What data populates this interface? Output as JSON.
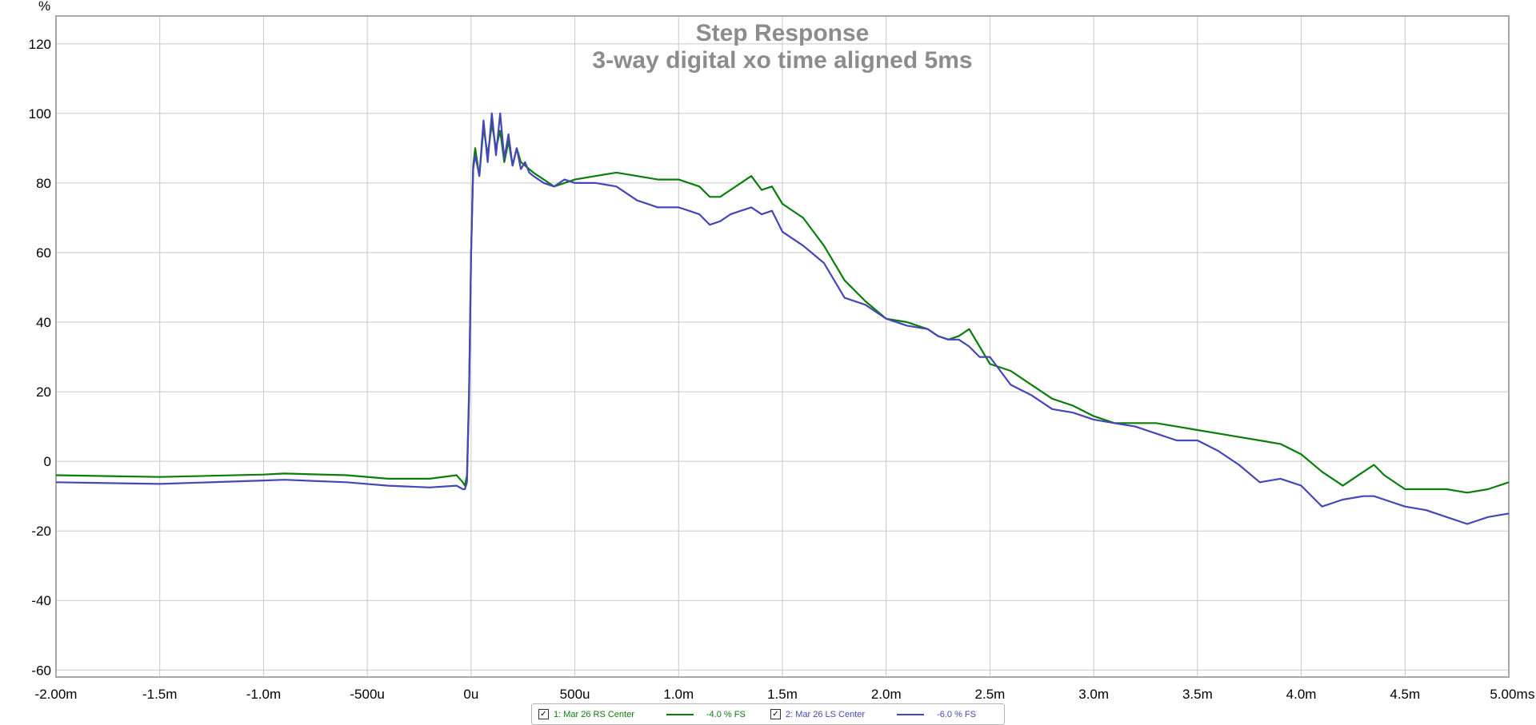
{
  "chart_data": {
    "type": "line",
    "title": "Step Response",
    "subtitle": "3-way digital xo time aligned 5ms",
    "ylabel": "%",
    "xunit": "s",
    "xlim": [
      -0.002,
      0.005
    ],
    "ylim": [
      -62,
      128
    ],
    "grid": true,
    "xticks": [
      {
        "v": -0.002,
        "label": "-2.00m"
      },
      {
        "v": -0.0015,
        "label": "-1.5m"
      },
      {
        "v": -0.001,
        "label": "-1.0m"
      },
      {
        "v": -0.0005,
        "label": "-500u"
      },
      {
        "v": 0,
        "label": "0u"
      },
      {
        "v": 0.0005,
        "label": "500u"
      },
      {
        "v": 0.001,
        "label": "1.0m"
      },
      {
        "v": 0.0015,
        "label": "1.5m"
      },
      {
        "v": 0.002,
        "label": "2.0m"
      },
      {
        "v": 0.0025,
        "label": "2.5m"
      },
      {
        "v": 0.003,
        "label": "3.0m"
      },
      {
        "v": 0.0035,
        "label": "3.5m"
      },
      {
        "v": 0.004,
        "label": "4.0m"
      },
      {
        "v": 0.0045,
        "label": "4.5m"
      },
      {
        "v": 0.005,
        "label": "5.00m"
      }
    ],
    "yticks": [
      120,
      100,
      80,
      60,
      40,
      20,
      0,
      -20,
      -40,
      -60
    ],
    "series": [
      {
        "name": "1: Mar 26 RS Center",
        "offset_label": "-4.0 % FS",
        "color": "#0a7d0a",
        "x": [
          -0.002,
          -0.0015,
          -0.001,
          -0.0009,
          -0.0006,
          -0.0004,
          -0.0002,
          -7e-05,
          -4e-05,
          -3e-05,
          -2e-05,
          -1e-05,
          0,
          1e-05,
          2e-05,
          4e-05,
          6e-05,
          8e-05,
          0.0001,
          0.00012,
          0.00014,
          0.00016,
          0.00018,
          0.0002,
          0.00022,
          0.00024,
          0.00026,
          0.00028,
          0.0003,
          0.00035,
          0.0004,
          0.00045,
          0.0005,
          0.0006,
          0.0007,
          0.0008,
          0.0009,
          0.001,
          0.00105,
          0.0011,
          0.00115,
          0.0012,
          0.00125,
          0.0013,
          0.00135,
          0.0014,
          0.00145,
          0.0015,
          0.0016,
          0.0017,
          0.0018,
          0.0019,
          0.002,
          0.0021,
          0.0022,
          0.00225,
          0.0023,
          0.00235,
          0.0024,
          0.00245,
          0.0025,
          0.0026,
          0.0027,
          0.0028,
          0.0029,
          0.003,
          0.0031,
          0.0032,
          0.0033,
          0.0034,
          0.0035,
          0.0036,
          0.0037,
          0.0038,
          0.0039,
          0.004,
          0.0041,
          0.0042,
          0.0043,
          0.00435,
          0.0044,
          0.0045,
          0.0046,
          0.0047,
          0.0048,
          0.0049,
          0.005
        ],
        "y": [
          -4,
          -4.5,
          -3.8,
          -3.5,
          -4,
          -5,
          -5,
          -4,
          -6,
          -7,
          -4,
          20,
          60,
          85,
          90,
          82,
          96,
          88,
          97,
          90,
          95,
          86,
          92,
          85,
          90,
          86,
          85,
          84,
          83,
          81,
          79,
          80,
          81,
          82,
          83,
          82,
          81,
          81,
          80,
          79,
          76,
          76,
          78,
          80,
          82,
          78,
          79,
          74,
          70,
          62,
          52,
          46,
          41,
          40,
          38,
          36,
          35,
          36,
          38,
          33,
          28,
          26,
          22,
          18,
          16,
          13,
          11,
          11,
          11,
          10,
          9,
          8,
          7,
          6,
          5,
          2,
          -3,
          -7,
          -3,
          -1,
          -4,
          -8,
          -8,
          -8,
          -9,
          -8,
          -6
        ]
      },
      {
        "name": "2: Mar 26 LS Center",
        "offset_label": "-6.0 % FS",
        "color": "#4646b8",
        "x": [
          -0.002,
          -0.0015,
          -0.001,
          -0.0009,
          -0.0006,
          -0.0004,
          -0.0002,
          -7e-05,
          -4e-05,
          -3e-05,
          -2e-05,
          -1e-05,
          0,
          1e-05,
          2e-05,
          4e-05,
          6e-05,
          8e-05,
          0.0001,
          0.00012,
          0.00014,
          0.00016,
          0.00018,
          0.0002,
          0.00022,
          0.00024,
          0.00026,
          0.00028,
          0.0003,
          0.00035,
          0.0004,
          0.00045,
          0.0005,
          0.0006,
          0.0007,
          0.0008,
          0.0009,
          0.001,
          0.00105,
          0.0011,
          0.00115,
          0.0012,
          0.00125,
          0.0013,
          0.00135,
          0.0014,
          0.00145,
          0.0015,
          0.0016,
          0.0017,
          0.0018,
          0.0019,
          0.002,
          0.0021,
          0.0022,
          0.00225,
          0.0023,
          0.00235,
          0.0024,
          0.00245,
          0.0025,
          0.0026,
          0.0027,
          0.0028,
          0.0029,
          0.003,
          0.0031,
          0.0032,
          0.0033,
          0.0034,
          0.0035,
          0.0036,
          0.0037,
          0.0038,
          0.0039,
          0.004,
          0.0041,
          0.0042,
          0.0043,
          0.00435,
          0.0044,
          0.0045,
          0.0046,
          0.0047,
          0.0048,
          0.0049,
          0.005
        ],
        "y": [
          -6,
          -6.5,
          -5.5,
          -5.3,
          -6,
          -7,
          -7.5,
          -7,
          -8,
          -8,
          -6,
          18,
          60,
          84,
          88,
          82,
          98,
          86,
          100,
          88,
          100,
          87,
          94,
          85,
          90,
          84,
          86,
          83,
          82,
          80,
          79,
          81,
          80,
          80,
          79,
          75,
          73,
          73,
          72,
          71,
          68,
          69,
          71,
          72,
          73,
          71,
          72,
          66,
          62,
          57,
          47,
          45,
          41,
          39,
          38,
          36,
          35,
          35,
          33,
          30,
          30,
          22,
          19,
          15,
          14,
          12,
          11,
          10,
          8,
          6,
          6,
          3,
          -1,
          -6,
          -5,
          -7,
          -13,
          -11,
          -10,
          -10,
          -11,
          -13,
          -14,
          -16,
          -18,
          -16,
          -15
        ]
      }
    ]
  }
}
